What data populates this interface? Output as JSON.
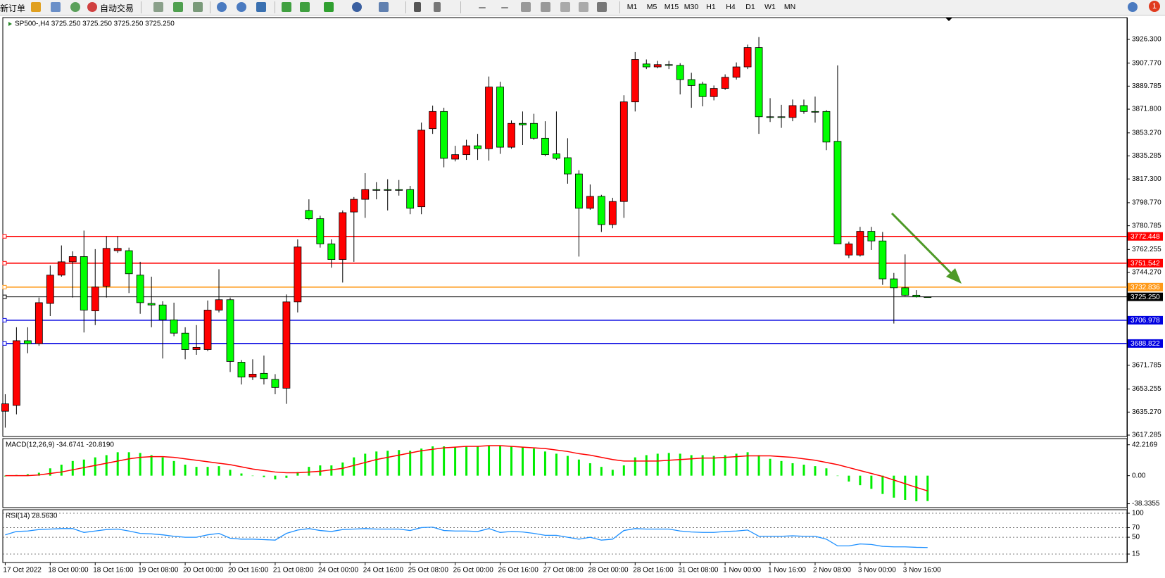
{
  "toolbar": {
    "new_order": "新订单",
    "auto_trading": "自动交易",
    "timeframes": [
      "M1",
      "M5",
      "M15",
      "M30",
      "H1",
      "H4",
      "D1",
      "W1",
      "MN"
    ],
    "badge": 1
  },
  "chart_data": [
    {
      "type": "candlestick",
      "title": "SP500-,H4 3725.250 3725.250 3725.250 3725.250",
      "up_color": "#ff0000",
      "down_color": "#00ff00",
      "categories": [
        "17 Oct 2022",
        null,
        null,
        null,
        "18 Oct 00:00",
        null,
        null,
        null,
        "18 Oct 16:00",
        null,
        null,
        null,
        "19 Oct 08:00",
        null,
        null,
        null,
        "20 Oct 00:00",
        null,
        null,
        null,
        "20 Oct 16:00",
        null,
        null,
        null,
        "21 Oct 08:00",
        null,
        null,
        null,
        "24 Oct 00:00",
        null,
        null,
        null,
        "24 Oct 16:00",
        null,
        null,
        null,
        "25 Oct 08:00",
        null,
        null,
        null,
        "26 Oct 00:00",
        null,
        null,
        null,
        "26 Oct 16:00",
        null,
        null,
        null,
        "27 Oct 08:00",
        null,
        null,
        null,
        "28 Oct 00:00",
        null,
        null,
        null,
        "28 Oct 16:00",
        null,
        null,
        null,
        "31 Oct 08:00",
        null,
        null,
        null,
        "1 Nov 00:00",
        null,
        null,
        null,
        "1 Nov 16:00",
        null,
        null,
        null,
        "2 Nov 08:00",
        null,
        null,
        null,
        "3 Nov 00:00",
        null,
        null,
        null,
        "3 Nov 16:00",
        null,
        null
      ],
      "open": [
        3635.9,
        3640.5,
        3691.0,
        3688.7,
        3720.1,
        3742.2,
        3752.6,
        3756.7,
        3714.3,
        3733.5,
        3761.3,
        3761.3,
        3742.2,
        3720.1,
        3718.9,
        3707.3,
        3696.9,
        3684.1,
        3684.1,
        3714.9,
        3723.0,
        3674.2,
        3662.6,
        3665.5,
        3660.8,
        3653.9,
        3721.3,
        3792.7,
        3786.3,
        3766.6,
        3754.4,
        3791.5,
        3801.4,
        3809.0,
        3809.0,
        3809.0,
        3809.0,
        3795.6,
        3856.6,
        3870.0,
        3832.8,
        3836.3,
        3843.2,
        3840.9,
        3889.1,
        3842.1,
        3860.7,
        3860.7,
        3849.1,
        3836.9,
        3833.9,
        3821.2,
        3794.4,
        3803.7,
        3781.7,
        3799.7,
        3877.5,
        3907.1,
        3904.8,
        3906.6,
        3906.0,
        3894.9,
        3891.5,
        3881.6,
        3888.0,
        3896.7,
        3904.8,
        3919.9,
        3865.9,
        3865.9,
        3865.3,
        3874.6,
        3870.0,
        3870.0,
        3846.7,
        3757.9,
        3757.9,
        3776.4,
        3768.9,
        3739.3,
        3732.3,
        3726.5,
        3725.25
      ],
      "high": [
        3649.2,
        3701.5,
        3701.5,
        3724.7,
        3749.7,
        3765.4,
        3760.8,
        3777.0,
        3762.5,
        3772.4,
        3772.4,
        3763.7,
        3752.6,
        3741.0,
        3721.8,
        3720.7,
        3701.5,
        3703.2,
        3722.4,
        3746.8,
        3724.7,
        3675.9,
        3676.5,
        3679.4,
        3664.9,
        3727.1,
        3770.1,
        3801.4,
        3788.6,
        3770.1,
        3792.7,
        3803.2,
        3821.8,
        3814.8,
        3817.1,
        3816.5,
        3811.9,
        3861.3,
        3874.6,
        3872.9,
        3843.2,
        3847.9,
        3852.5,
        3897.3,
        3893.2,
        3863.0,
        3870.0,
        3868.2,
        3862.4,
        3870.0,
        3849.1,
        3824.1,
        3813.0,
        3804.9,
        3802.6,
        3882.7,
        3916.4,
        3910.6,
        3909.5,
        3909.5,
        3907.7,
        3900.2,
        3893.2,
        3890.3,
        3899.0,
        3908.3,
        3922.2,
        3928.1,
        3880.4,
        3875.2,
        3879.3,
        3879.3,
        3881.6,
        3871.1,
        3906.0,
        3768.3,
        3779.9,
        3779.9,
        3775.9,
        3743.9,
        3758.4,
        3730.5,
        3725.25
      ],
      "low": [
        3623.1,
        3633.5,
        3681.2,
        3687.0,
        3710.2,
        3741.0,
        3724.7,
        3697.4,
        3703.2,
        3724.7,
        3759.6,
        3728.2,
        3712.0,
        3701.5,
        3677.1,
        3694.5,
        3676.5,
        3680.0,
        3682.9,
        3713.1,
        3666.6,
        3656.8,
        3660.3,
        3656.8,
        3649.2,
        3641.7,
        3713.1,
        3785.2,
        3763.7,
        3748.0,
        3736.4,
        3752.6,
        3786.9,
        3801.4,
        3792.7,
        3804.3,
        3789.8,
        3789.8,
        3852.5,
        3826.4,
        3831.0,
        3832.2,
        3832.2,
        3831.6,
        3836.9,
        3840.9,
        3843.8,
        3847.9,
        3835.1,
        3832.2,
        3813.6,
        3756.7,
        3793.3,
        3775.9,
        3778.8,
        3786.9,
        3870.0,
        3903.1,
        3903.7,
        3903.1,
        3883.3,
        3872.9,
        3874.0,
        3878.7,
        3886.8,
        3894.9,
        3903.1,
        3852.5,
        3861.8,
        3857.2,
        3862.4,
        3868.2,
        3861.3,
        3839.8,
        3766.6,
        3755.5,
        3756.7,
        3761.9,
        3734.6,
        3704.4,
        3725.9,
        3724.7,
        3725.25
      ],
      "close": [
        3641.7,
        3691.0,
        3688.7,
        3720.7,
        3742.2,
        3752.6,
        3756.7,
        3714.9,
        3732.9,
        3763.1,
        3763.1,
        3743.3,
        3720.7,
        3718.9,
        3707.3,
        3696.9,
        3684.1,
        3685.8,
        3714.9,
        3723.0,
        3674.8,
        3662.6,
        3664.9,
        3661.4,
        3654.5,
        3721.3,
        3764.2,
        3786.3,
        3766.6,
        3754.4,
        3791.0,
        3801.4,
        3809.0,
        3808.4,
        3808.4,
        3808.4,
        3794.4,
        3855.4,
        3870.0,
        3833.4,
        3836.3,
        3843.2,
        3840.9,
        3889.1,
        3842.1,
        3860.7,
        3859.5,
        3849.1,
        3836.3,
        3833.4,
        3821.2,
        3794.4,
        3803.7,
        3781.7,
        3799.7,
        3877.5,
        3910.6,
        3904.8,
        3906.6,
        3906.0,
        3894.9,
        3890.3,
        3881.6,
        3888.0,
        3896.7,
        3904.8,
        3919.9,
        3865.9,
        3865.3,
        3865.3,
        3874.6,
        3870.0,
        3869.4,
        3846.1,
        3766.6,
        3766.6,
        3776.4,
        3768.9,
        3739.3,
        3732.3,
        3726.5,
        3725.3,
        3725.25
      ],
      "ylim": [
        3616.2,
        3943.3
      ],
      "yticks": [
        {
          "value": 3926.3,
          "label": "3926.300"
        },
        {
          "value": 3907.77,
          "label": "3907.770"
        },
        3889.785,
        {
          "value": 3871.8,
          "label": "3871.800"
        },
        {
          "value": 3853.27,
          "label": "3853.270"
        },
        3835.285,
        {
          "value": 3817.3,
          "label": "3817.300"
        },
        {
          "value": 3798.77,
          "label": "3798.770"
        },
        3780.785,
        3762.255,
        {
          "value": 3744.27,
          "label": "3744.270"
        },
        3671.785,
        3653.255,
        {
          "value": 3635.27,
          "label": "3635.270"
        },
        3617.285
      ],
      "hlines": [
        {
          "value": 3772.448,
          "color": "#ff0000"
        },
        {
          "value": 3751.542,
          "color": "#ff0000"
        },
        {
          "value": 3732.836,
          "color": "#ff9a1a"
        },
        {
          "value": 3725.25,
          "label": "3725.250",
          "color": "#000000"
        },
        {
          "value": 3706.978,
          "color": "#0000e0"
        },
        {
          "value": 3688.822,
          "color": "#0000e0"
        }
      ]
    },
    {
      "type": "macd",
      "title": "MACD(12,26,9) -34.6741 -20.8190",
      "ylim": [
        -43.6,
        50.6
      ],
      "yticks": [
        42.2169,
        {
          "value": 0,
          "label": "0.00"
        },
        -38.3355
      ],
      "series": [
        {
          "kind": "bar",
          "color": "#00ee00",
          "values": [
            -1,
            1,
            2,
            4,
            10,
            15,
            20,
            22,
            25,
            28,
            32,
            32,
            31,
            28,
            25,
            20,
            15,
            12,
            12,
            13,
            8,
            3,
            0,
            -2,
            -5,
            -3,
            5,
            12,
            14,
            14,
            18,
            25,
            30,
            33,
            34,
            35,
            34,
            37,
            40,
            40,
            39,
            40,
            40,
            41,
            41,
            40,
            39,
            37,
            33,
            30,
            27,
            22,
            17,
            12,
            8,
            14,
            25,
            28,
            30,
            31,
            30,
            28,
            28,
            27,
            28,
            30,
            32,
            28,
            23,
            20,
            17,
            15,
            13,
            10,
            0,
            -8,
            -13,
            -18,
            -25,
            -30,
            -33,
            -35,
            -34.6741
          ]
        },
        {
          "kind": "line",
          "color": "#ff0000",
          "values": [
            0,
            0,
            0,
            1,
            3,
            5,
            8,
            11,
            14,
            17,
            20,
            23,
            25,
            26,
            26,
            25,
            23,
            21,
            19,
            17,
            15,
            12,
            9,
            7,
            5,
            4,
            4,
            5,
            6,
            8,
            10,
            14,
            18,
            22,
            25,
            28,
            31,
            34,
            36,
            38,
            39,
            40,
            40,
            41,
            41,
            40,
            39,
            38,
            37,
            35,
            33,
            30,
            28,
            25,
            22,
            20,
            20,
            20,
            20,
            21,
            22,
            23,
            24,
            24,
            25,
            26,
            27,
            27,
            27,
            26,
            25,
            23,
            21,
            18,
            15,
            11,
            7,
            3,
            -1,
            -6,
            -11,
            -16,
            -20.819
          ]
        }
      ]
    },
    {
      "type": "line",
      "title": "RSI(14) 28.5630",
      "grid": true,
      "ylim": [
        -2.6,
        107.3
      ],
      "yticks": [
        100,
        70,
        50,
        15
      ],
      "series": [
        {
          "color": "#1e90ff",
          "values": [
            55,
            62,
            63,
            66,
            67,
            68,
            68,
            60,
            63,
            66,
            67,
            63,
            58,
            57,
            55,
            52,
            50,
            50,
            55,
            58,
            48,
            46,
            46,
            45,
            44,
            58,
            65,
            68,
            64,
            62,
            66,
            67,
            68,
            67,
            67,
            67,
            64,
            70,
            71,
            64,
            63,
            63,
            62,
            68,
            60,
            62,
            61,
            58,
            54,
            54,
            50,
            46,
            50,
            44,
            46,
            64,
            68,
            67,
            67,
            67,
            63,
            61,
            60,
            60,
            62,
            63,
            65,
            52,
            52,
            52,
            53,
            52,
            52,
            46,
            32,
            32,
            36,
            35,
            31,
            30,
            30,
            29,
            28.563
          ]
        }
      ]
    }
  ]
}
